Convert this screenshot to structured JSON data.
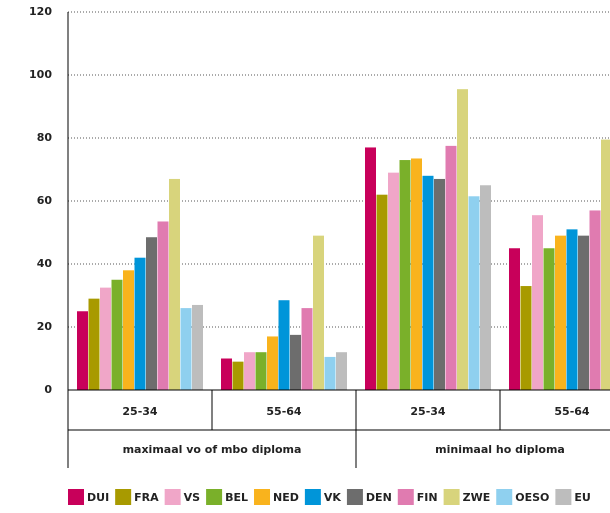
{
  "chart_data": {
    "type": "bar",
    "categories": [
      "25-34",
      "55-64",
      "25-34",
      "55-64"
    ],
    "group_labels": [
      "maximaal vo of mbo diploma",
      "minimaal ho diploma"
    ],
    "series": [
      {
        "name": "DUI",
        "color": "#c8005a",
        "values": [
          25,
          10,
          77,
          45
        ]
      },
      {
        "name": "FRA",
        "color": "#a89a00",
        "values": [
          29,
          9,
          62,
          33
        ]
      },
      {
        "name": "VS",
        "color": "#f0a6c8",
        "values": [
          32.5,
          12,
          69,
          55.5
        ]
      },
      {
        "name": "BEL",
        "color": "#7ab02a",
        "values": [
          35,
          12,
          73,
          45
        ]
      },
      {
        "name": "NED",
        "color": "#f9b31d",
        "values": [
          38,
          17,
          73.5,
          49
        ]
      },
      {
        "name": "VK",
        "color": "#0095d9",
        "values": [
          42,
          28.5,
          68,
          51
        ]
      },
      {
        "name": "DEN",
        "color": "#6d6d6d",
        "values": [
          48.5,
          17.5,
          67,
          49
        ]
      },
      {
        "name": "FIN",
        "color": "#e07bb0",
        "values": [
          53.5,
          26,
          77.5,
          57
        ]
      },
      {
        "name": "ZWE",
        "color": "#d8d47c",
        "values": [
          67,
          49,
          95.5,
          79.5
        ]
      },
      {
        "name": "OESO",
        "color": "#8fd0ef",
        "values": [
          26,
          10.5,
          61.5,
          null
        ]
      },
      {
        "name": "EU",
        "color": "#bdbdbd",
        "values": [
          27,
          12,
          65,
          null
        ]
      }
    ],
    "ylim": [
      0,
      120
    ],
    "yticks": [
      0,
      20,
      40,
      60,
      80,
      100,
      120
    ],
    "grid": true
  }
}
